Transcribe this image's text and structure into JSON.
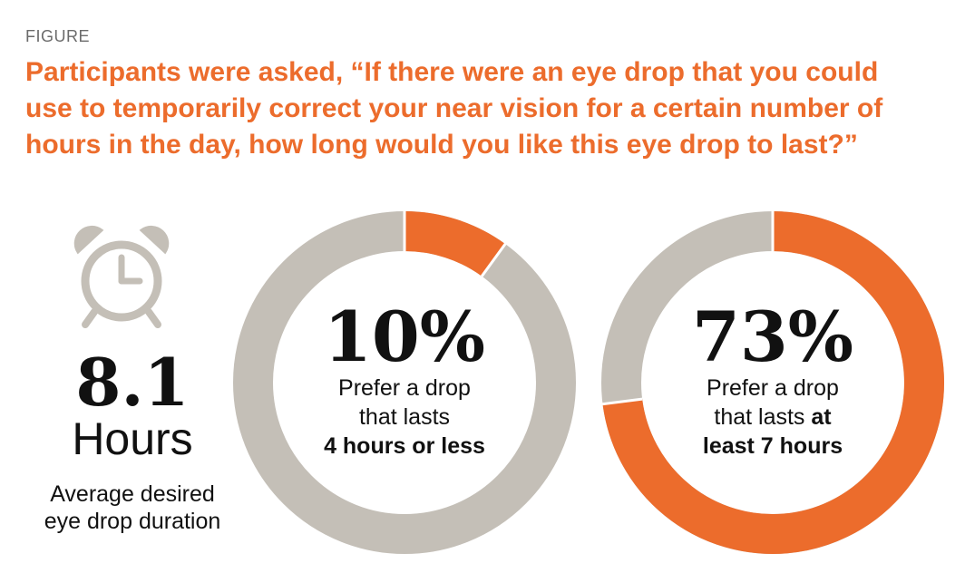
{
  "figure_label": "FIGURE",
  "title": "Participants were asked, “If there were an eye drop that you could use to temporarily correct your near vision for a certain number of hours in the day, how long would you like this eye drop to last?”",
  "average": {
    "value": "8.1",
    "unit": "Hours",
    "caption_line1": "Average desired",
    "caption_line2": "eye drop duration",
    "icon": "alarm-clock-icon"
  },
  "colors": {
    "accent": "#ec6c2c",
    "neutral": "#c4bfb7",
    "text": "#111111"
  },
  "chart_data": [
    {
      "type": "pie",
      "values": [
        10,
        90
      ],
      "highlight_percent": 10,
      "percent_label": "10%",
      "line1": "Prefer a drop",
      "line2": "that lasts",
      "line3_bold": "4 hours or less"
    },
    {
      "type": "pie",
      "values": [
        73,
        27
      ],
      "highlight_percent": 73,
      "percent_label": "73%",
      "line1": "Prefer a drop",
      "line2_plain": "that lasts ",
      "line2_bold": "at",
      "line3_bold": "least 7 hours"
    }
  ]
}
